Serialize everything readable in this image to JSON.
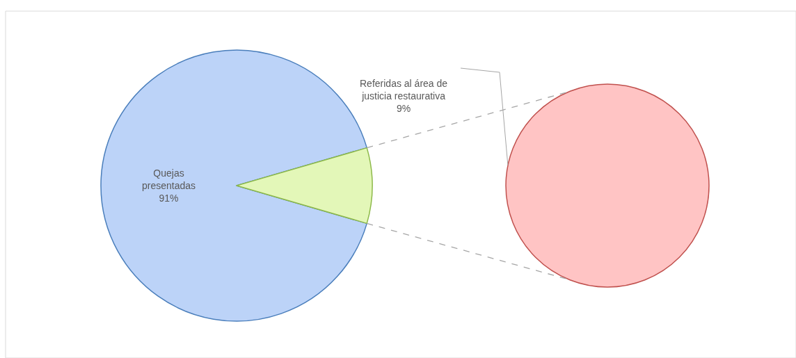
{
  "chart_data": [
    {
      "type": "pie",
      "categories": [
        "Quejas presentadas",
        null
      ],
      "values": [
        91,
        9
      ],
      "value_labels": [
        "91%",
        null
      ],
      "colors": [
        "#bcd3f8",
        "#e3f7b8"
      ]
    },
    {
      "type": "pie",
      "categories": [
        "Referidas al área de justicia restaurativa"
      ],
      "values": [
        9
      ],
      "value_labels": [
        "9%"
      ],
      "colors": [
        "#ffc4c4"
      ]
    }
  ]
}
